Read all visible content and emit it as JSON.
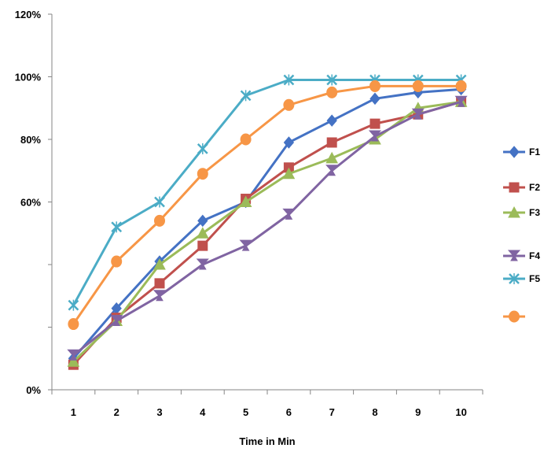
{
  "chart_data": {
    "type": "line",
    "title": "",
    "xlabel": "Time in Min",
    "ylabel": "",
    "x": [
      1,
      2,
      3,
      4,
      5,
      6,
      7,
      8,
      9,
      10
    ],
    "x_tick_labels": [
      "1",
      "2",
      "3",
      "4",
      "5",
      "6",
      "7",
      "8",
      "9",
      "10"
    ],
    "ylim": [
      0,
      120
    ],
    "y_ticks": [
      0,
      20,
      40,
      60,
      80,
      100,
      120
    ],
    "y_tick_labels": [
      "0%",
      "",
      "",
      "60%",
      "80%",
      "100%",
      "120%"
    ],
    "grid": false,
    "legend_position": "right",
    "series": [
      {
        "name": "F1",
        "color": "#4472C4",
        "marker": "diamond",
        "values": [
          10,
          26,
          41,
          54,
          60,
          79,
          86,
          93,
          95,
          96
        ]
      },
      {
        "name": "F2",
        "color": "#C0504D",
        "marker": "square",
        "values": [
          8,
          23,
          34,
          46,
          61,
          71,
          79,
          85,
          88,
          92
        ]
      },
      {
        "name": "F3",
        "color": "#9BBB59",
        "marker": "triangle",
        "values": [
          9,
          22,
          40,
          50,
          60,
          69,
          74,
          80,
          90,
          92
        ]
      },
      {
        "name": "F4",
        "color": "#8064A2",
        "marker": "triangle-down",
        "values": [
          11,
          22,
          30,
          40,
          46,
          56,
          70,
          81,
          88,
          92
        ]
      },
      {
        "name": "F5",
        "color": "#4BACC6",
        "marker": "x",
        "values": [
          27,
          52,
          60,
          77,
          94,
          99,
          99,
          99,
          99,
          99
        ]
      },
      {
        "name": "",
        "color": "#F79646",
        "marker": "circle",
        "values": [
          21,
          41,
          54,
          69,
          80,
          91,
          95,
          97,
          97,
          97
        ]
      }
    ]
  }
}
